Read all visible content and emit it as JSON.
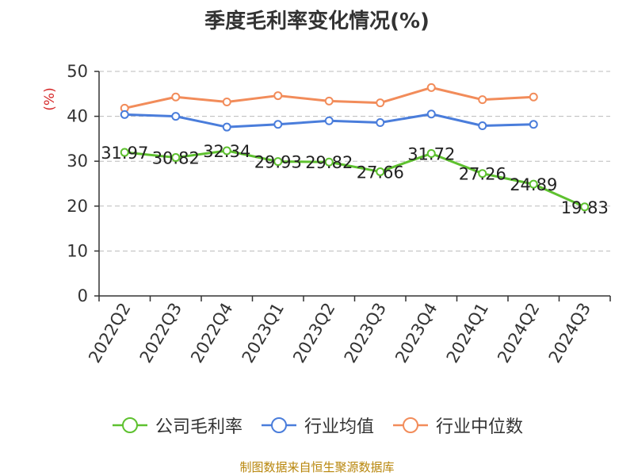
{
  "chart_data": {
    "type": "line",
    "title": "季度毛利率变化情况(%)",
    "ylabel": "(%)",
    "ylim": [
      0,
      50
    ],
    "yticks": [
      0,
      10,
      20,
      30,
      40,
      50
    ],
    "grid": true,
    "legend_position": "bottom",
    "categories": [
      "2022Q2",
      "2022Q3",
      "2022Q4",
      "2023Q1",
      "2023Q2",
      "2023Q3",
      "2023Q4",
      "2024Q1",
      "2024Q2",
      "2024Q3"
    ],
    "series": [
      {
        "name": "公司毛利率",
        "color": "#5ec12f",
        "values": [
          31.97,
          30.82,
          32.34,
          29.93,
          29.82,
          27.66,
          31.72,
          27.26,
          24.89,
          19.83
        ],
        "data_labels": [
          "31.97",
          "30.82",
          "32.34",
          "29.93",
          "29.82",
          "27.66",
          "31.72",
          "27.26",
          "24.89",
          "19.83"
        ]
      },
      {
        "name": "行业均值",
        "color": "#4a7ddb",
        "values": [
          40.4,
          40.0,
          37.6,
          38.2,
          39.0,
          38.6,
          40.5,
          37.9,
          38.2,
          null
        ]
      },
      {
        "name": "行业中位数",
        "color": "#f28c5a",
        "values": [
          41.8,
          44.3,
          43.2,
          44.6,
          43.4,
          43.0,
          46.4,
          43.7,
          44.3,
          null
        ]
      }
    ]
  },
  "source": "制图数据来自恒生聚源数据库"
}
